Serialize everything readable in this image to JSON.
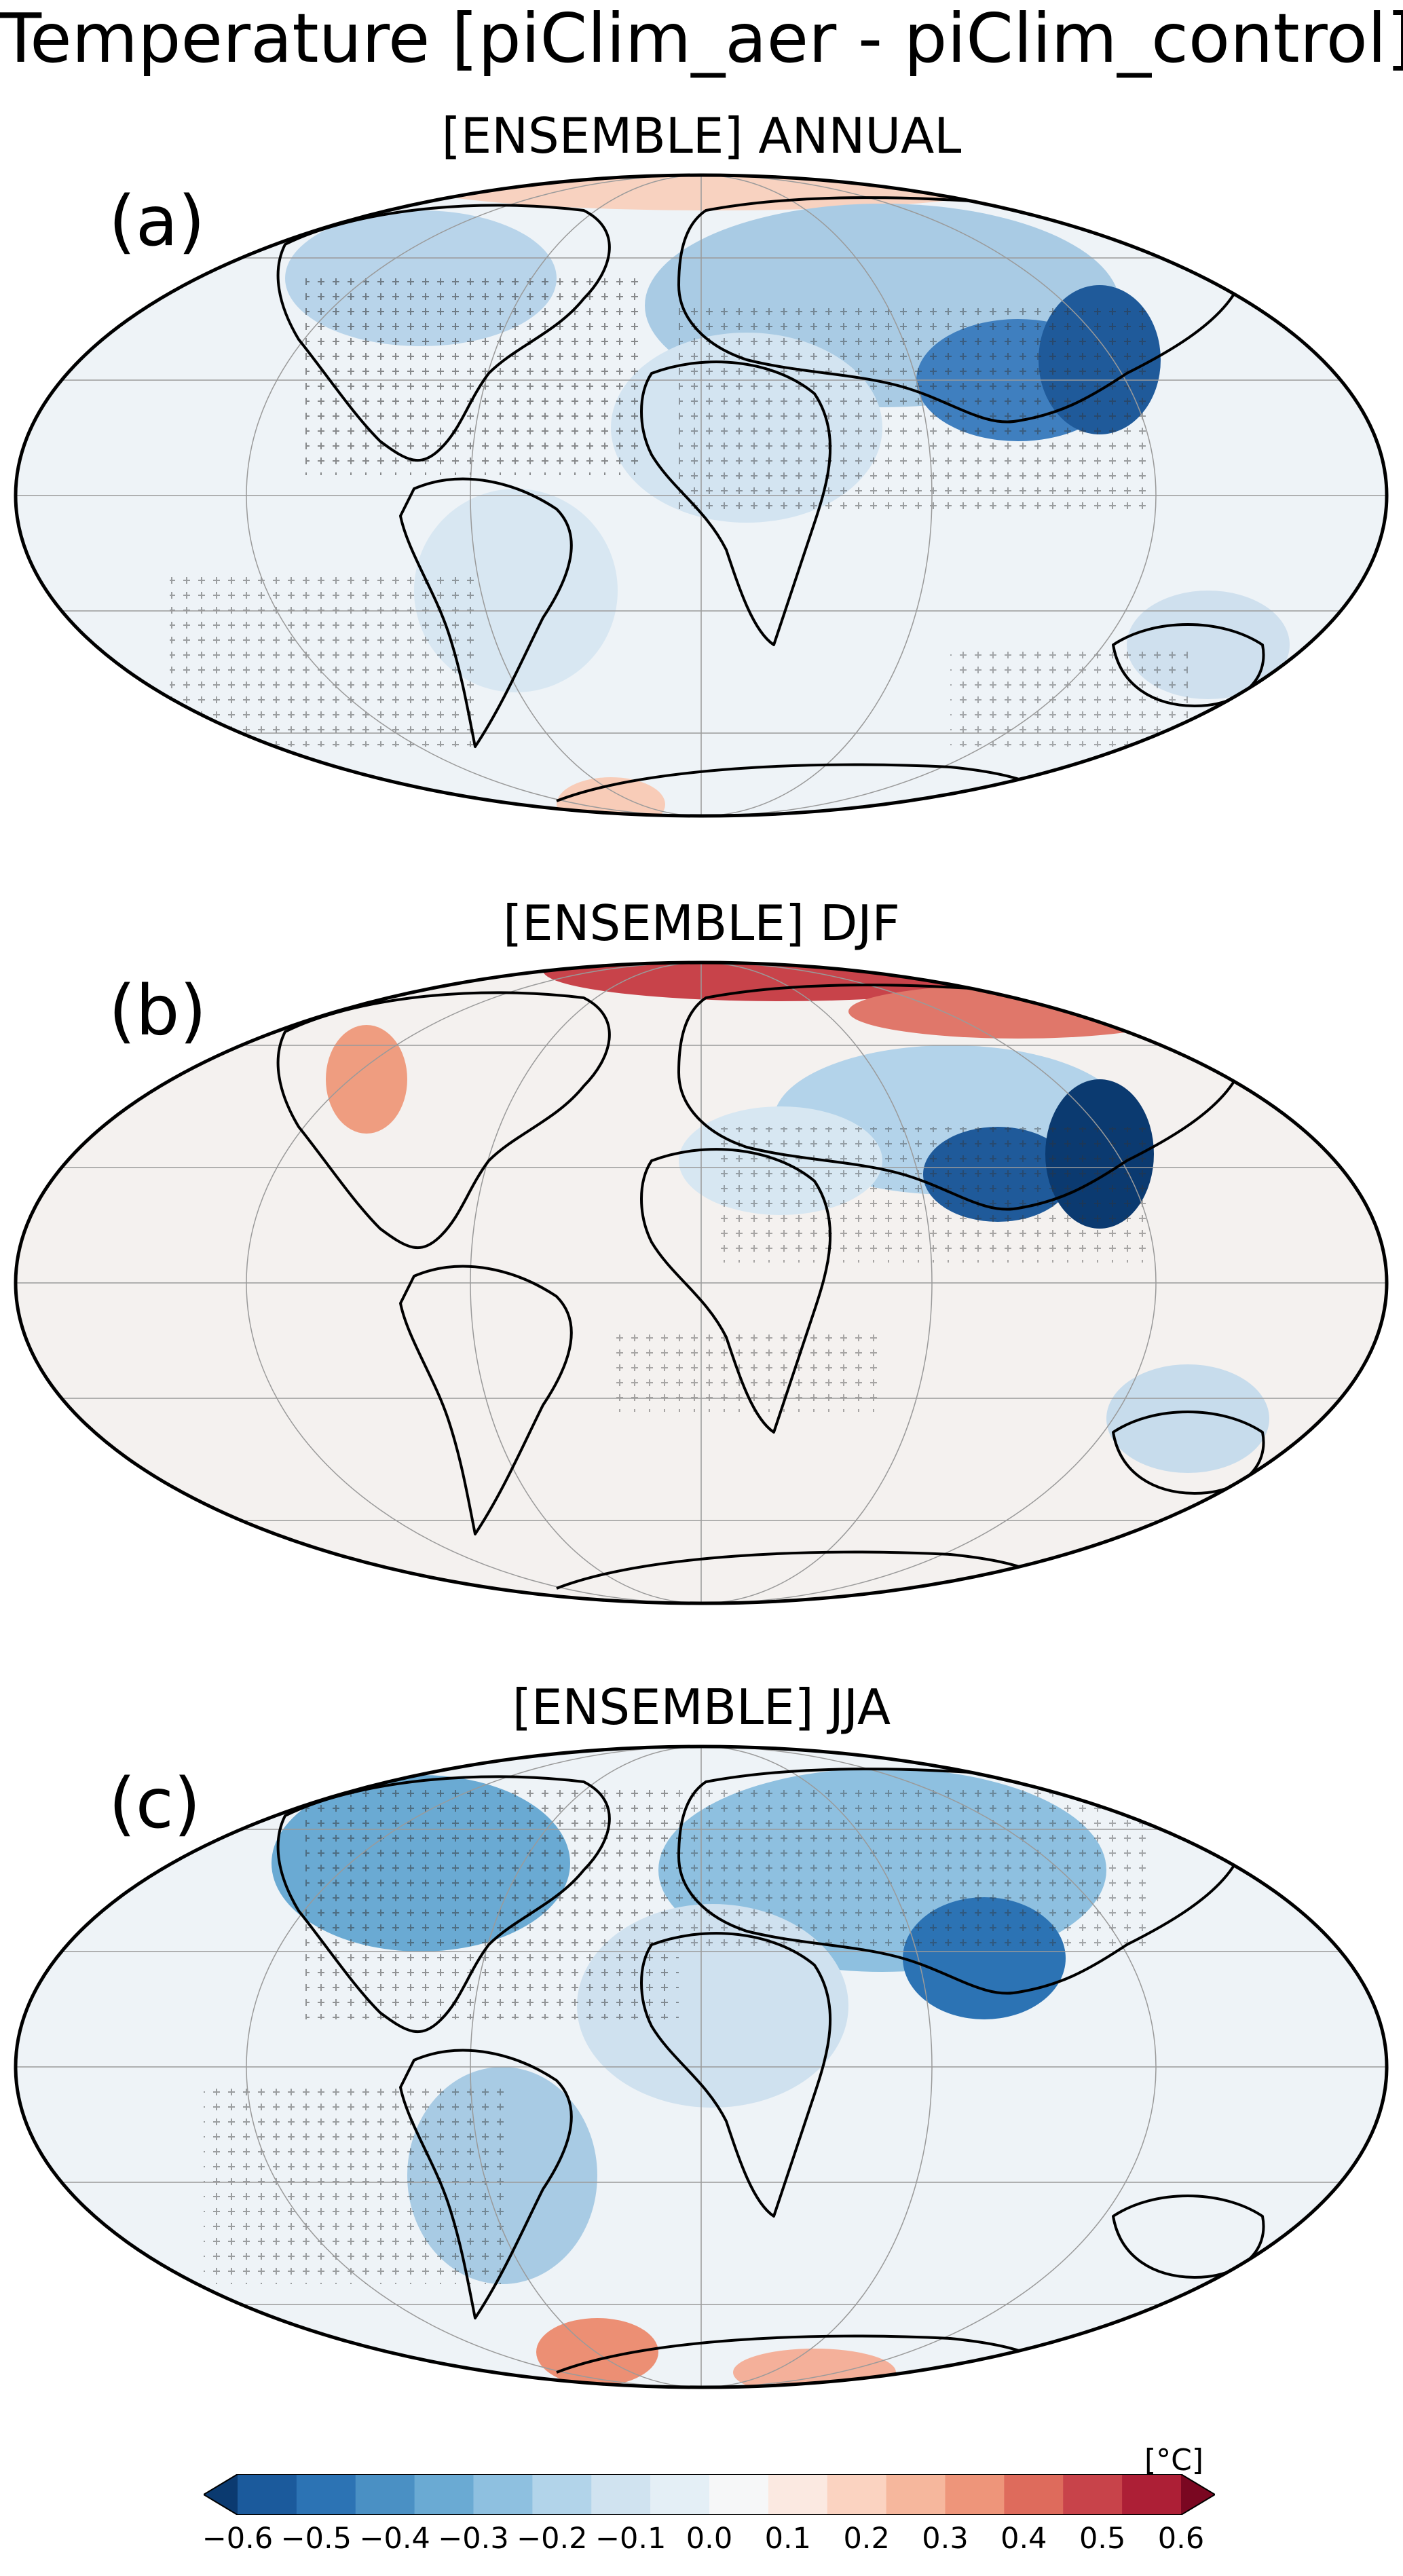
{
  "title": "Temperature [piClim_aer - piClim_control]",
  "panels": [
    {
      "label": "(a)",
      "subtitle": "[ENSEMBLE] ANNUAL"
    },
    {
      "label": "(b)",
      "subtitle": "[ENSEMBLE] DJF"
    },
    {
      "label": "(c)",
      "subtitle": "[ENSEMBLE] JJA"
    }
  ],
  "colorbar": {
    "unit": "[°C]",
    "ticks": [
      "−0.6",
      "−0.5",
      "−0.4",
      "−0.3",
      "−0.2",
      "−0.1",
      "0.0",
      "0.1",
      "0.2",
      "0.3",
      "0.4",
      "0.5",
      "0.6"
    ],
    "range": [
      -0.6,
      0.6
    ],
    "extend": "both",
    "colormap": "RdBu_r",
    "colors": [
      "#0b3a70",
      "#1b5a9c",
      "#2c73b4",
      "#4a90c4",
      "#6aaad3",
      "#8ec0e0",
      "#b2d4ea",
      "#d0e3f0",
      "#e4eff6",
      "#f6f7f8",
      "#fbe9e1",
      "#fbd3c1",
      "#f6b79d",
      "#ee957a",
      "#de6b5c",
      "#c8434a",
      "#ad1f36",
      "#7a0721"
    ]
  },
  "projection": "Mollweide",
  "stippling": "+ markers show significant areas"
}
